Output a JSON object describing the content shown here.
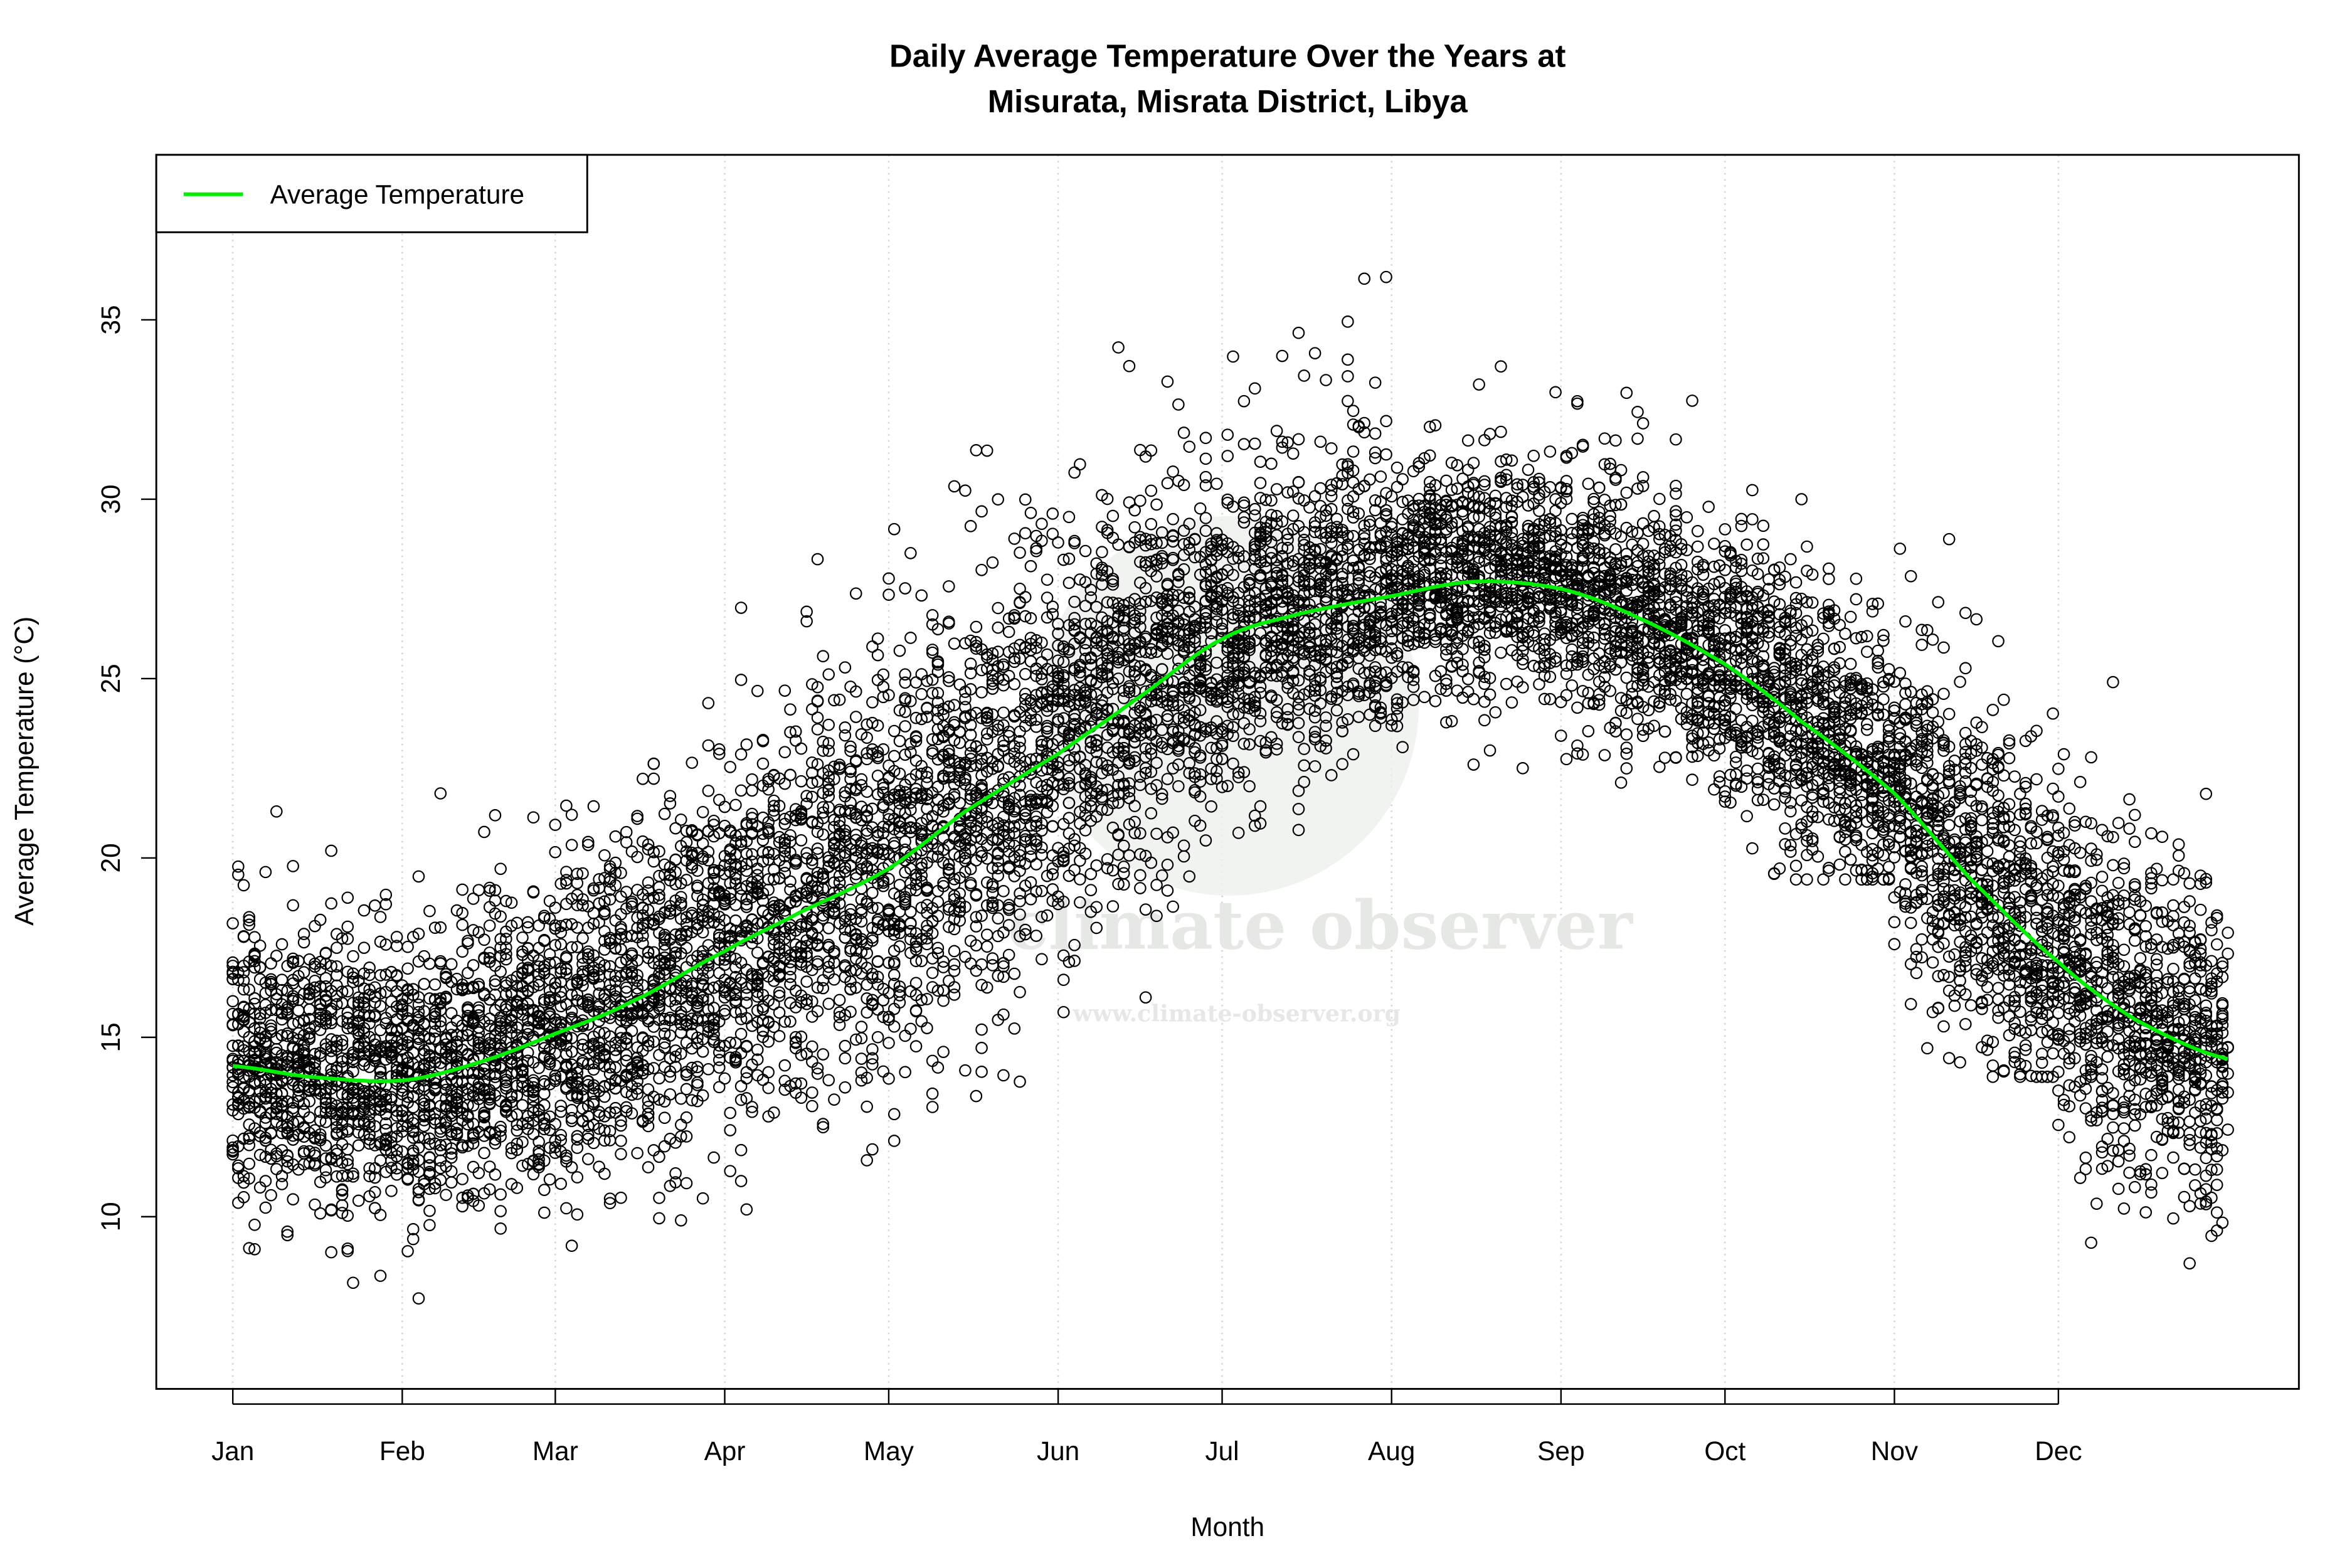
{
  "chart_data": {
    "type": "scatter",
    "title_line1": "Daily Average Temperature Over the Years at",
    "title_line2": "Misurata, Misrata District, Libya",
    "xlabel": "Month",
    "ylabel": "Average Temperature (°C)",
    "xlim_day_of_year": [
      -13,
      379
    ],
    "ylim": [
      5.2,
      39.6
    ],
    "grid": "vertical dotted lines at month starts",
    "legend": {
      "placement": "top-left",
      "entries": [
        {
          "label": "Average Temperature",
          "color": "#00ee00"
        }
      ]
    },
    "x_ticks": [
      {
        "label": "Jan",
        "day": 1
      },
      {
        "label": "Feb",
        "day": 32
      },
      {
        "label": "Mar",
        "day": 60
      },
      {
        "label": "Apr",
        "day": 91
      },
      {
        "label": "May",
        "day": 121
      },
      {
        "label": "Jun",
        "day": 152
      },
      {
        "label": "Jul",
        "day": 182
      },
      {
        "label": "Aug",
        "day": 213
      },
      {
        "label": "Sep",
        "day": 244
      },
      {
        "label": "Oct",
        "day": 274
      },
      {
        "label": "Nov",
        "day": 305
      },
      {
        "label": "Dec",
        "day": 335
      }
    ],
    "y_ticks": [
      10,
      15,
      20,
      25,
      30,
      35
    ],
    "average_line": {
      "name": "Average Temperature",
      "color": "#00ee00",
      "points": [
        [
          1,
          14.2
        ],
        [
          15,
          13.9
        ],
        [
          32,
          13.8
        ],
        [
          46,
          14.3
        ],
        [
          60,
          15.1
        ],
        [
          74,
          16.0
        ],
        [
          91,
          17.4
        ],
        [
          105,
          18.5
        ],
        [
          121,
          19.7
        ],
        [
          135,
          21.3
        ],
        [
          152,
          22.9
        ],
        [
          166,
          24.4
        ],
        [
          182,
          26.1
        ],
        [
          196,
          26.8
        ],
        [
          213,
          27.3
        ],
        [
          228,
          27.7
        ],
        [
          244,
          27.5
        ],
        [
          258,
          26.7
        ],
        [
          274,
          25.4
        ],
        [
          288,
          23.8
        ],
        [
          305,
          21.8
        ],
        [
          319,
          19.4
        ],
        [
          335,
          17.1
        ],
        [
          349,
          15.5
        ],
        [
          366,
          14.4
        ]
      ]
    },
    "scatter": {
      "description_marker": "open circle",
      "color": "#000000",
      "monthly_range": [
        {
          "month": "Jan",
          "min": 6.5,
          "max": 22.8
        },
        {
          "month": "Feb",
          "min": 6.9,
          "max": 21.8
        },
        {
          "month": "Mar",
          "min": 8.1,
          "max": 25.2
        },
        {
          "month": "Apr",
          "min": 10.2,
          "max": 28.8
        },
        {
          "month": "May",
          "min": 11.8,
          "max": 35.1
        },
        {
          "month": "Jun",
          "min": 15.7,
          "max": 35.9
        },
        {
          "month": "Jul",
          "min": 20.7,
          "max": 38.3
        },
        {
          "month": "Aug",
          "min": 22.5,
          "max": 35.6
        },
        {
          "month": "Sep",
          "min": 19.8,
          "max": 35.0
        },
        {
          "month": "Oct",
          "min": 19.4,
          "max": 33.8
        },
        {
          "month": "Nov",
          "min": 13.9,
          "max": 32.0
        },
        {
          "month": "Dec",
          "min": 7.3,
          "max": 24.9
        }
      ]
    }
  },
  "watermark": {
    "name": "climate observer",
    "url": "www.climate-observer.org"
  }
}
